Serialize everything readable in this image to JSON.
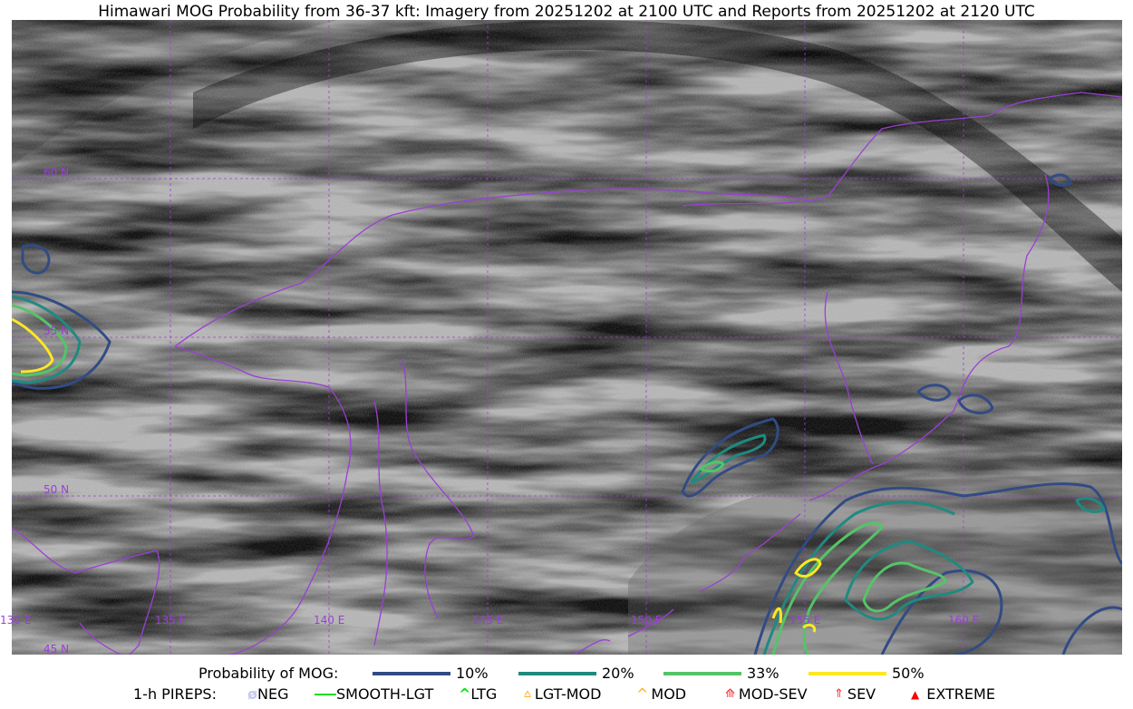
{
  "title": "Himawari MOG Probability from 36-37 kft: Imagery from 20251202 at 2100 UTC and Reports from 20251202 at 2120 UTC",
  "map": {
    "lon_labels": [
      "130 E",
      "135 E",
      "140 E",
      "145 E",
      "150 E",
      "155 E",
      "160 E"
    ],
    "lat_labels": [
      "60 N",
      "55 N",
      "50 N",
      "45 N"
    ],
    "coastline_color": "#9b3fd4",
    "gridline_color": "#9b3fd4"
  },
  "legend": {
    "probability": {
      "label": "Probability of MOG:",
      "items": [
        {
          "label": "10%",
          "color": "#324b84"
        },
        {
          "label": "20%",
          "color": "#1f8a80"
        },
        {
          "label": "33%",
          "color": "#55c467"
        },
        {
          "label": "50%",
          "color": "#fde725"
        }
      ]
    },
    "pireps": {
      "label": "1-h PIREPS:",
      "items": [
        {
          "label": "NEG",
          "icon": "neg-icon",
          "color": "#c8c8f0"
        },
        {
          "label": "SMOOTH-LGT",
          "icon": "smooth-lgt-icon",
          "color": "#22dd22"
        },
        {
          "label": "LTG",
          "icon": "ltg-icon",
          "color": "#00ee00"
        },
        {
          "label": "LGT-MOD",
          "icon": "lgt-mod-icon",
          "color": "#ffb020"
        },
        {
          "label": "MOD",
          "icon": "mod-icon",
          "color": "#ffb020"
        },
        {
          "label": "MOD-SEV",
          "icon": "mod-sev-icon",
          "color": "#ff2020"
        },
        {
          "label": "SEV",
          "icon": "sev-icon",
          "color": "#ff2020"
        },
        {
          "label": "EXTREME",
          "icon": "extreme-icon",
          "color": "#ff0000"
        }
      ]
    }
  }
}
